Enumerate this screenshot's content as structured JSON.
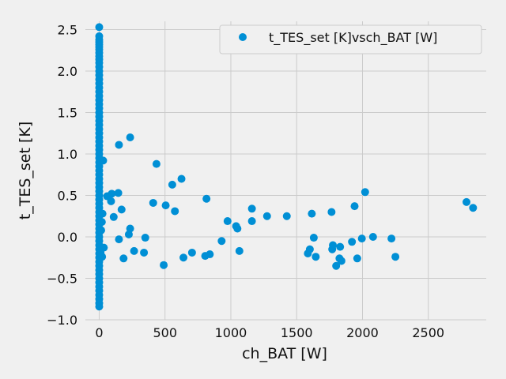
{
  "chart_data": {
    "type": "scatter",
    "xlabel": "ch_BAT [W]",
    "ylabel": "t_TES_set [K]",
    "xlim": [
      -105,
      2940
    ],
    "ylim": [
      -1.0,
      2.6
    ],
    "x_ticks": [
      0,
      500,
      1000,
      1500,
      2000,
      2500
    ],
    "x_tick_labels": [
      "0",
      "500",
      "1000",
      "1500",
      "2000",
      "2500"
    ],
    "y_ticks": [
      -1.0,
      -0.5,
      0.0,
      0.5,
      1.0,
      1.5,
      2.0,
      2.5
    ],
    "y_tick_labels": [
      "−1.0",
      "−0.5",
      "0.0",
      "0.5",
      "1.0",
      "1.5",
      "2.0",
      "2.5"
    ],
    "grid": true,
    "legend_position": "top-right",
    "color": "#008fd5",
    "series": [
      {
        "name": "t_TES_set [K]vsch_BAT [W]",
        "points": [
          [
            0,
            2.53
          ],
          [
            0,
            2.42
          ],
          [
            0,
            2.38
          ],
          [
            0,
            2.35
          ],
          [
            0,
            2.32
          ],
          [
            0,
            2.29
          ],
          [
            0,
            2.26
          ],
          [
            0,
            2.22
          ],
          [
            0,
            2.18
          ],
          [
            0,
            2.14
          ],
          [
            0,
            2.1
          ],
          [
            0,
            2.05
          ],
          [
            0,
            2.0
          ],
          [
            0,
            1.95
          ],
          [
            0,
            1.9
          ],
          [
            0,
            1.85
          ],
          [
            0,
            1.8
          ],
          [
            0,
            1.75
          ],
          [
            0,
            1.7
          ],
          [
            0,
            1.65
          ],
          [
            0,
            1.6
          ],
          [
            0,
            1.55
          ],
          [
            0,
            1.5
          ],
          [
            0,
            1.45
          ],
          [
            0,
            1.4
          ],
          [
            0,
            1.35
          ],
          [
            0,
            1.3
          ],
          [
            0,
            1.25
          ],
          [
            0,
            1.2
          ],
          [
            0,
            1.15
          ],
          [
            0,
            1.1
          ],
          [
            0,
            1.05
          ],
          [
            0,
            1.0
          ],
          [
            0,
            0.95
          ],
          [
            0,
            0.9
          ],
          [
            0,
            0.85
          ],
          [
            0,
            0.8
          ],
          [
            0,
            0.75
          ],
          [
            0,
            0.7
          ],
          [
            0,
            0.65
          ],
          [
            0,
            0.6
          ],
          [
            0,
            0.55
          ],
          [
            0,
            0.5
          ],
          [
            0,
            0.45
          ],
          [
            0,
            0.4
          ],
          [
            0,
            0.35
          ],
          [
            0,
            0.3
          ],
          [
            0,
            0.25
          ],
          [
            0,
            0.2
          ],
          [
            0,
            0.15
          ],
          [
            0,
            0.1
          ],
          [
            0,
            0.05
          ],
          [
            0,
            0.0
          ],
          [
            0,
            -0.05
          ],
          [
            0,
            -0.1
          ],
          [
            0,
            -0.15
          ],
          [
            0,
            -0.2
          ],
          [
            0,
            -0.25
          ],
          [
            0,
            -0.3
          ],
          [
            0,
            -0.35
          ],
          [
            0,
            -0.4
          ],
          [
            0,
            -0.45
          ],
          [
            0,
            -0.5
          ],
          [
            0,
            -0.55
          ],
          [
            0,
            -0.6
          ],
          [
            0,
            -0.65
          ],
          [
            0,
            -0.7
          ],
          [
            0,
            -0.75
          ],
          [
            0,
            -0.8
          ],
          [
            0,
            -0.84
          ],
          [
            30,
            0.92
          ],
          [
            25,
            0.28
          ],
          [
            20,
            0.18
          ],
          [
            15,
            0.08
          ],
          [
            35,
            -0.13
          ],
          [
            10,
            -0.19
          ],
          [
            22,
            -0.24
          ],
          [
            60,
            0.49
          ],
          [
            90,
            0.43
          ],
          [
            95,
            0.52
          ],
          [
            145,
            0.53
          ],
          [
            150,
            1.11
          ],
          [
            235,
            1.2
          ],
          [
            110,
            0.24
          ],
          [
            170,
            0.33
          ],
          [
            150,
            -0.03
          ],
          [
            185,
            -0.26
          ],
          [
            225,
            0.03
          ],
          [
            235,
            0.1
          ],
          [
            265,
            -0.17
          ],
          [
            340,
            -0.19
          ],
          [
            350,
            -0.01
          ],
          [
            410,
            0.41
          ],
          [
            435,
            0.88
          ],
          [
            490,
            -0.34
          ],
          [
            505,
            0.38
          ],
          [
            555,
            0.63
          ],
          [
            575,
            0.31
          ],
          [
            625,
            0.7
          ],
          [
            640,
            -0.25
          ],
          [
            705,
            -0.19
          ],
          [
            805,
            -0.23
          ],
          [
            815,
            0.46
          ],
          [
            840,
            -0.21
          ],
          [
            930,
            -0.05
          ],
          [
            975,
            0.19
          ],
          [
            1040,
            0.13
          ],
          [
            1050,
            0.1
          ],
          [
            1065,
            -0.17
          ],
          [
            1160,
            0.34
          ],
          [
            1160,
            0.19
          ],
          [
            1275,
            0.25
          ],
          [
            1425,
            0.25
          ],
          [
            1585,
            -0.2
          ],
          [
            1600,
            -0.15
          ],
          [
            1615,
            0.28
          ],
          [
            1630,
            -0.01
          ],
          [
            1645,
            -0.24
          ],
          [
            1765,
            0.3
          ],
          [
            1770,
            -0.15
          ],
          [
            1775,
            -0.1
          ],
          [
            1800,
            -0.35
          ],
          [
            1825,
            -0.26
          ],
          [
            1830,
            -0.12
          ],
          [
            1840,
            -0.29
          ],
          [
            1920,
            -0.06
          ],
          [
            1940,
            0.37
          ],
          [
            1960,
            -0.26
          ],
          [
            1995,
            -0.02
          ],
          [
            2020,
            0.54
          ],
          [
            2080,
            0.0
          ],
          [
            2220,
            -0.02
          ],
          [
            2250,
            -0.24
          ],
          [
            2790,
            0.42
          ],
          [
            2840,
            0.35
          ]
        ]
      }
    ]
  }
}
